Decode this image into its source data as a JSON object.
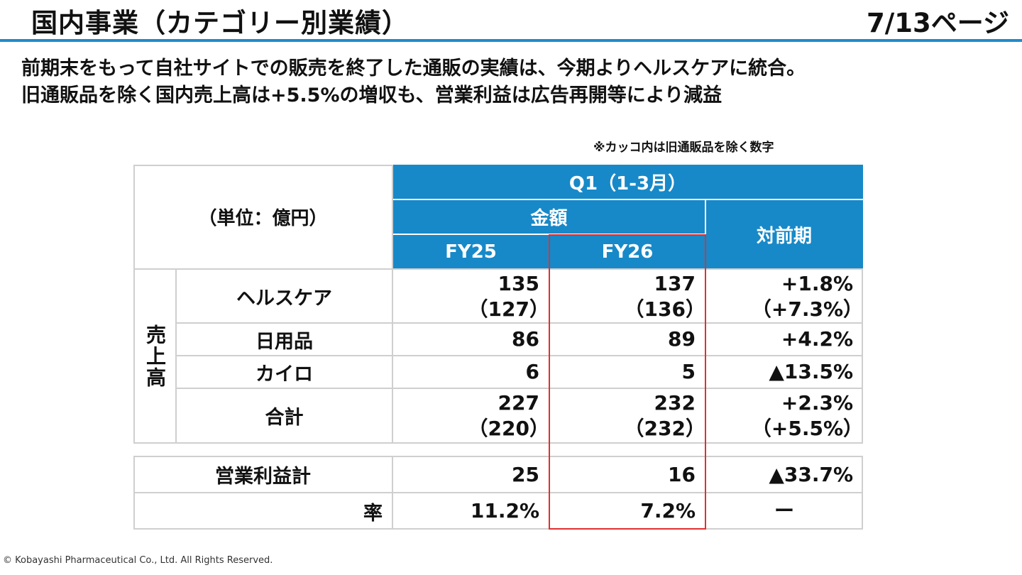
{
  "header": {
    "title": "国内事業（カテゴリー別業績）",
    "page": "7/13ページ"
  },
  "lead": {
    "line1": "前期末をもって自社サイトでの販売を終了した通販の実績は、今期よりヘルスケアに統合。",
    "line2": "旧通販品を除く国内売上高は+5.5%の増収も、営業利益は広告再開等により減益"
  },
  "note": "※カッコ内は旧通販品を除く数字",
  "table": {
    "unit": "（単位：億円）",
    "period": "Q1（1-3月）",
    "amount": "金額",
    "yoy": "対前期",
    "fy25": "FY25",
    "fy26": "FY26",
    "sales_label": "売上高",
    "rows": {
      "healthcare": {
        "label": "ヘルスケア",
        "fy25": "135",
        "fy25_sub": "（127）",
        "fy26": "137",
        "fy26_sub": "（136）",
        "yoy": "+1.8%",
        "yoy_sub": "（+7.3%）"
      },
      "daily": {
        "label": "日用品",
        "fy25": "86",
        "fy26": "89",
        "yoy": "+4.2%"
      },
      "kairo": {
        "label": "カイロ",
        "fy25": "6",
        "fy26": "5",
        "yoy": "▲13.5%"
      },
      "total": {
        "label": "合計",
        "fy25": "227",
        "fy25_sub": "（220）",
        "fy26": "232",
        "fy26_sub": "（232）",
        "yoy": "+2.3%",
        "yoy_sub": "（+5.5%）"
      },
      "op_profit": {
        "label": "営業利益計",
        "fy25": "25",
        "fy26": "16",
        "yoy": "▲33.7%"
      },
      "op_margin": {
        "label": "率",
        "fy25": "11.2%",
        "fy26": "7.2%",
        "yoy": "ー"
      }
    }
  },
  "footer": "© Kobayashi Pharmaceutical Co., Ltd. All Rights Reserved."
}
